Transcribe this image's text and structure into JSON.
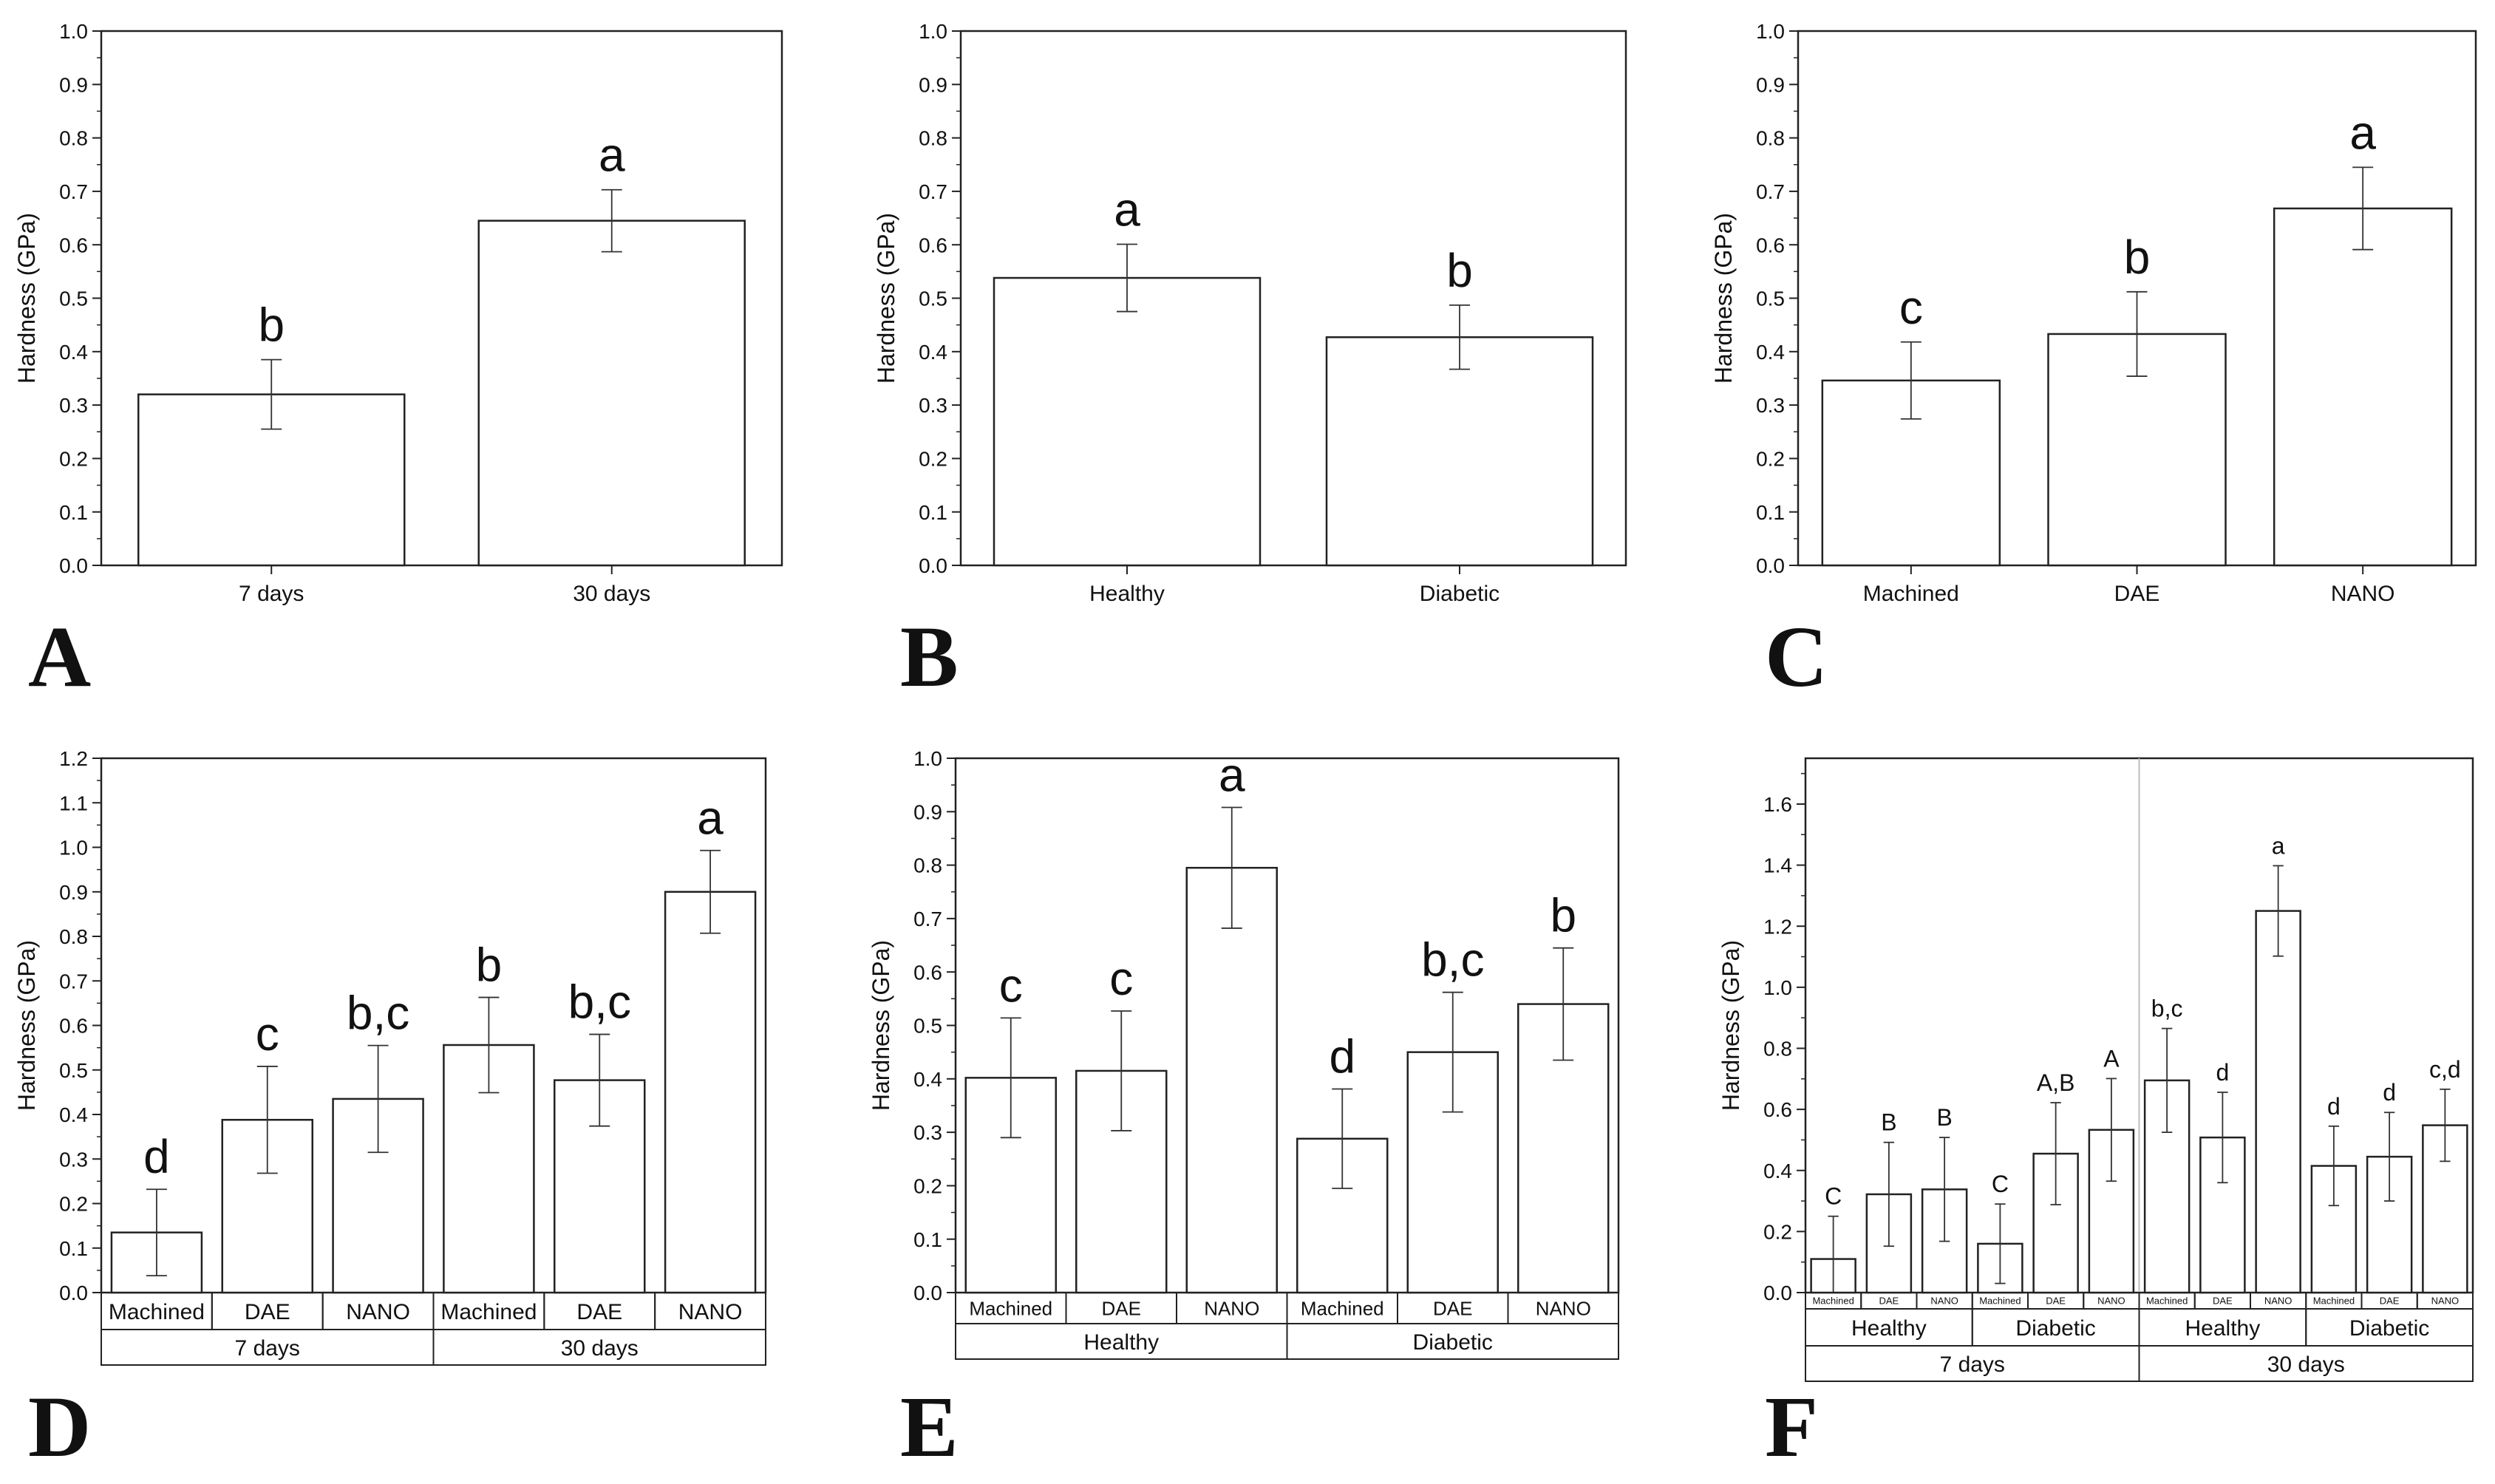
{
  "figure": {
    "chart_count": 6
  },
  "chart_data": [
    {
      "panel": "A",
      "type": "bar",
      "ylabel": "Hardness (GPa)",
      "ylim": [
        0,
        1.0
      ],
      "ystep": 0.1,
      "ytick_labels": [
        "0.0",
        "0.1",
        "0.2",
        "0.3",
        "0.4",
        "0.5",
        "0.6",
        "0.7",
        "0.8",
        "0.9",
        "1.0"
      ],
      "categories": [
        "7 days",
        "30 days"
      ],
      "values": [
        0.32,
        0.645
      ],
      "errors": [
        0.065,
        0.058
      ],
      "letters": [
        "b",
        "a"
      ]
    },
    {
      "panel": "B",
      "type": "bar",
      "ylabel": "Hardness (GPa)",
      "ylim": [
        0,
        1.0
      ],
      "ystep": 0.1,
      "ytick_labels": [
        "0.0",
        "0.1",
        "0.2",
        "0.3",
        "0.4",
        "0.5",
        "0.6",
        "0.7",
        "0.8",
        "0.9",
        "1.0"
      ],
      "categories": [
        "Healthy",
        "Diabetic"
      ],
      "values": [
        0.538,
        0.427
      ],
      "errors": [
        0.063,
        0.06
      ],
      "letters": [
        "a",
        "b"
      ]
    },
    {
      "panel": "C",
      "type": "bar",
      "ylabel": "Hardness (GPa)",
      "ylim": [
        0,
        1.0
      ],
      "ystep": 0.1,
      "ytick_labels": [
        "0.0",
        "0.1",
        "0.2",
        "0.3",
        "0.4",
        "0.5",
        "0.6",
        "0.7",
        "0.8",
        "0.9",
        "1.0"
      ],
      "categories": [
        "Machined",
        "DAE",
        "NANO"
      ],
      "values": [
        0.346,
        0.433,
        0.668
      ],
      "errors": [
        0.072,
        0.079,
        0.077
      ],
      "letters": [
        "c",
        "b",
        "a"
      ]
    },
    {
      "panel": "D",
      "type": "bar",
      "ylabel": "Hardness (GPa)",
      "ylim": [
        0,
        1.2
      ],
      "ystep": 0.1,
      "ytick_labels": [
        "0.0",
        "0.1",
        "0.2",
        "0.3",
        "0.4",
        "0.5",
        "0.6",
        "0.7",
        "0.8",
        "0.9",
        "1.0",
        "1.1",
        "1.2"
      ],
      "categories": [
        "Machined",
        "DAE",
        "NANO",
        "Machined",
        "DAE",
        "NANO"
      ],
      "groups": [
        {
          "label": "7 days",
          "span": 3
        },
        {
          "label": "30 days",
          "span": 3
        }
      ],
      "values": [
        0.135,
        0.388,
        0.435,
        0.556,
        0.477,
        0.9
      ],
      "errors": [
        0.097,
        0.12,
        0.12,
        0.107,
        0.103,
        0.093
      ],
      "letters": [
        "d",
        "c",
        "b,c",
        "b",
        "b,c",
        "a"
      ]
    },
    {
      "panel": "E",
      "type": "bar",
      "ylabel": "Hardness (GPa)",
      "ylim": [
        0,
        1.0
      ],
      "ystep": 0.1,
      "ytick_labels": [
        "0.0",
        "0.1",
        "0.2",
        "0.3",
        "0.4",
        "0.5",
        "0.6",
        "0.7",
        "0.8",
        "0.9",
        "1.0"
      ],
      "categories": [
        "Machined",
        "DAE",
        "NANO",
        "Machined",
        "DAE",
        "NANO"
      ],
      "groups": [
        {
          "label": "Healthy",
          "span": 3
        },
        {
          "label": "Diabetic",
          "span": 3
        }
      ],
      "values": [
        0.402,
        0.415,
        0.795,
        0.288,
        0.45,
        0.54
      ],
      "errors": [
        0.112,
        0.112,
        0.113,
        0.093,
        0.112,
        0.105
      ],
      "letters": [
        "c",
        "c",
        "a",
        "d",
        "b,c",
        "b"
      ]
    },
    {
      "panel": "F",
      "type": "bar",
      "ylabel": "Hardness (GPa)",
      "ylim": [
        0,
        1.75
      ],
      "ystep": 0.2,
      "ytick_labels": [
        "0.0",
        "0.2",
        "0.4",
        "0.6",
        "0.8",
        "1.0",
        "1.2",
        "1.4",
        "1.6"
      ],
      "categories": [
        "Machined",
        "DAE",
        "NANO",
        "Machined",
        "DAE",
        "NANO",
        "Machined",
        "DAE",
        "NANO",
        "Machined",
        "DAE",
        "NANO"
      ],
      "groups": [
        {
          "label": "Healthy",
          "span": 3
        },
        {
          "label": "Diabetic",
          "span": 3
        },
        {
          "label": "Healthy",
          "span": 3
        },
        {
          "label": "Diabetic",
          "span": 3
        }
      ],
      "supergroups": [
        {
          "label": "7 days",
          "span": 6
        },
        {
          "label": "30 days",
          "span": 6
        }
      ],
      "values": [
        0.11,
        0.322,
        0.338,
        0.16,
        0.455,
        0.533,
        0.695,
        0.508,
        1.25,
        0.415,
        0.445,
        0.548
      ],
      "errors": [
        0.14,
        0.17,
        0.17,
        0.13,
        0.167,
        0.168,
        0.17,
        0.148,
        0.148,
        0.13,
        0.145,
        0.118
      ],
      "letters": [
        "C",
        "B",
        "B",
        "C",
        "A,B",
        "A",
        "b,c",
        "d",
        "a",
        "d",
        "d",
        "c,d"
      ]
    }
  ]
}
